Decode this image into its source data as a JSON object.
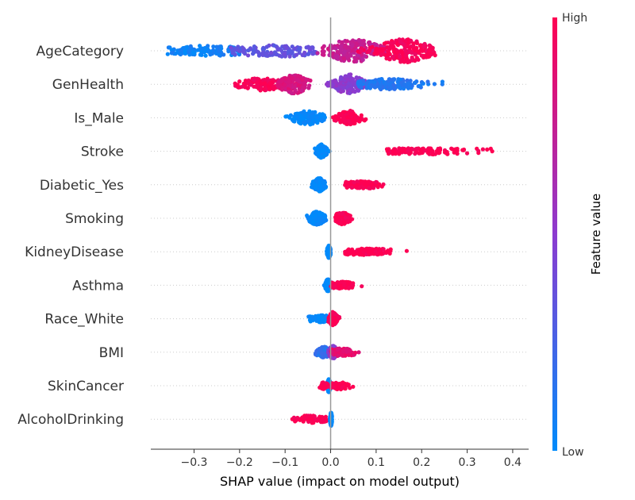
{
  "chart_data": {
    "type": "scatter",
    "subtype": "shap-beeswarm",
    "xlabel": "SHAP value (impact on model output)",
    "xlim": [
      -0.395,
      0.435
    ],
    "xticks": [
      -0.3,
      -0.2,
      -0.1,
      0.0,
      0.1,
      0.2,
      0.3,
      0.4
    ],
    "xtick_labels": [
      "−0.3",
      "−0.2",
      "−0.1",
      "0.0",
      "0.1",
      "0.2",
      "0.3",
      "0.4"
    ],
    "colorbar": {
      "title": "Feature value",
      "high_label": "High",
      "low_label": "Low",
      "low_color": "#008bfb",
      "mid_color": "#8c3bd0",
      "high_color": "#ff0052"
    },
    "features": [
      {
        "name": "AgeCategory",
        "spread": 2.2,
        "clusters": [
          {
            "min": -0.36,
            "max": -0.2,
            "center": -0.27,
            "sd": 0.06,
            "value": 0.05,
            "weight": 0.9,
            "width": 0.1
          },
          {
            "min": -0.22,
            "max": -0.03,
            "center": -0.12,
            "sd": 0.06,
            "value": 0.35,
            "weight": 0.9,
            "width": 0.14
          },
          {
            "min": -0.03,
            "max": 0.12,
            "center": 0.05,
            "sd": 0.04,
            "value": 0.75,
            "weight": 1.5,
            "width": 0.35
          },
          {
            "min": 0.06,
            "max": 0.23,
            "center": 0.16,
            "sd": 0.04,
            "value": 0.97,
            "weight": 1.5,
            "width": 0.35
          }
        ]
      },
      {
        "name": "GenHealth",
        "spread": 1.8,
        "clusters": [
          {
            "min": -0.21,
            "max": -0.1,
            "center": -0.15,
            "sd": 0.03,
            "value": 0.97,
            "weight": 0.9,
            "width": 0.18
          },
          {
            "min": -0.12,
            "max": -0.02,
            "center": -0.08,
            "sd": 0.02,
            "value": 0.82,
            "weight": 1.0,
            "width": 0.32
          },
          {
            "min": -0.01,
            "max": 0.1,
            "center": 0.04,
            "sd": 0.02,
            "value": 0.5,
            "weight": 1.1,
            "width": 0.35
          },
          {
            "min": 0.06,
            "max": 0.26,
            "center": 0.13,
            "sd": 0.04,
            "value": 0.12,
            "weight": 1.2,
            "width": 0.14
          }
        ]
      },
      {
        "name": "Is_Male",
        "spread": 1.2,
        "clusters": [
          {
            "min": -0.1,
            "max": -0.01,
            "center": -0.05,
            "sd": 0.02,
            "value": 0.0,
            "weight": 1,
            "width": 0.3
          },
          {
            "min": 0.0,
            "max": 0.08,
            "center": 0.04,
            "sd": 0.015,
            "value": 1.0,
            "weight": 1,
            "width": 0.32
          }
        ]
      },
      {
        "name": "Stroke",
        "spread": 1.0,
        "clusters": [
          {
            "min": -0.04,
            "max": 0.0,
            "center": -0.02,
            "sd": 0.006,
            "value": 0.0,
            "weight": 1.6,
            "width": 0.38
          },
          {
            "min": 0.12,
            "max": 0.39,
            "center": 0.2,
            "sd": 0.06,
            "value": 1.0,
            "weight": 0.8,
            "width": 0.05
          }
        ]
      },
      {
        "name": "Diabetic_Yes",
        "spread": 1.0,
        "clusters": [
          {
            "min": -0.05,
            "max": -0.01,
            "center": -0.025,
            "sd": 0.007,
            "value": 0.0,
            "weight": 1.5,
            "width": 0.35
          },
          {
            "min": 0.03,
            "max": 0.14,
            "center": 0.07,
            "sd": 0.025,
            "value": 1.0,
            "weight": 0.8,
            "width": 0.1
          }
        ]
      },
      {
        "name": "Smoking",
        "spread": 1.0,
        "clusters": [
          {
            "min": -0.06,
            "max": -0.01,
            "center": -0.03,
            "sd": 0.01,
            "value": 0.0,
            "weight": 1.4,
            "width": 0.35
          },
          {
            "min": 0.01,
            "max": 0.07,
            "center": 0.025,
            "sd": 0.01,
            "value": 1.0,
            "weight": 1.0,
            "width": 0.3
          }
        ]
      },
      {
        "name": "KidneyDisease",
        "spread": 1.0,
        "clusters": [
          {
            "min": -0.01,
            "max": 0.0,
            "center": -0.004,
            "sd": 0.002,
            "value": 0.0,
            "weight": 1.6,
            "width": 0.3
          },
          {
            "min": 0.03,
            "max": 0.19,
            "center": 0.08,
            "sd": 0.035,
            "value": 1.0,
            "weight": 0.8,
            "width": 0.06
          }
        ]
      },
      {
        "name": "Asthma",
        "spread": 1.0,
        "clusters": [
          {
            "min": -0.02,
            "max": 0.0,
            "center": -0.006,
            "sd": 0.003,
            "value": 0.0,
            "weight": 1.6,
            "width": 0.3
          },
          {
            "min": 0.0,
            "max": 0.08,
            "center": 0.025,
            "sd": 0.015,
            "value": 1.0,
            "weight": 0.8,
            "width": 0.08
          }
        ]
      },
      {
        "name": "Race_White",
        "spread": 1.0,
        "clusters": [
          {
            "min": -0.06,
            "max": -0.005,
            "center": -0.02,
            "sd": 0.012,
            "value": 0.0,
            "weight": 0.8,
            "width": 0.08
          },
          {
            "min": -0.005,
            "max": 0.03,
            "center": 0.005,
            "sd": 0.005,
            "value": 1.0,
            "weight": 1.5,
            "width": 0.35
          }
        ]
      },
      {
        "name": "BMI",
        "spread": 1.0,
        "clusters": [
          {
            "min": -0.04,
            "max": 0.0,
            "center": -0.015,
            "sd": 0.008,
            "value": 0.15,
            "weight": 1.0,
            "width": 0.25
          },
          {
            "min": -0.01,
            "max": 0.03,
            "center": 0.005,
            "sd": 0.005,
            "value": 0.5,
            "weight": 1.2,
            "width": 0.35
          },
          {
            "min": 0.0,
            "max": 0.08,
            "center": 0.025,
            "sd": 0.015,
            "value": 0.9,
            "weight": 0.7,
            "width": 0.12
          }
        ]
      },
      {
        "name": "SkinCancer",
        "spread": 1.0,
        "clusters": [
          {
            "min": -0.01,
            "max": 0.0,
            "center": -0.004,
            "sd": 0.002,
            "value": 0.0,
            "weight": 1.6,
            "width": 0.33
          },
          {
            "min": -0.03,
            "max": -0.005,
            "center": -0.015,
            "sd": 0.005,
            "value": 1.0,
            "weight": 0.3,
            "width": 0.08
          },
          {
            "min": 0.0,
            "max": 0.06,
            "center": 0.02,
            "sd": 0.01,
            "value": 1.0,
            "weight": 0.6,
            "width": 0.1
          }
        ]
      },
      {
        "name": "AlcoholDrinking",
        "spread": 1.0,
        "clusters": [
          {
            "min": -0.09,
            "max": -0.005,
            "center": -0.045,
            "sd": 0.02,
            "value": 1.0,
            "weight": 0.6,
            "width": 0.1
          },
          {
            "min": -0.002,
            "max": 0.003,
            "center": 0.001,
            "sd": 0.001,
            "value": 0.0,
            "weight": 1.5,
            "width": 0.35
          }
        ]
      }
    ],
    "grid": false,
    "zero_line": true
  }
}
